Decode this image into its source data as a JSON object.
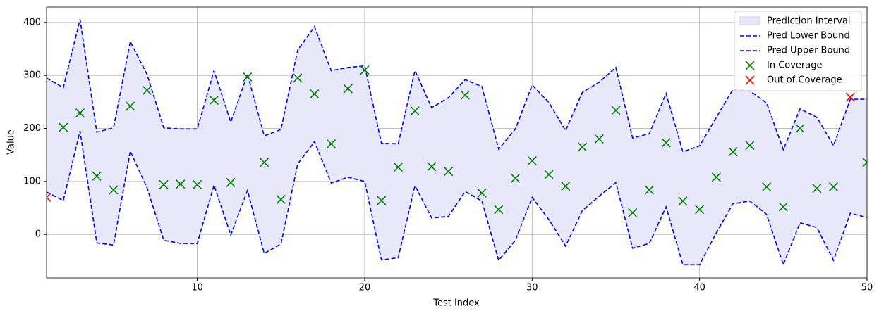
{
  "chart_data": {
    "type": "interval",
    "xlabel": "Test Index",
    "ylabel": "Value",
    "xlim": [
      1,
      50
    ],
    "ylim": [
      -82,
      429
    ],
    "xticks": [
      10,
      20,
      30,
      40,
      50
    ],
    "yticks": [
      0,
      100,
      200,
      300,
      400
    ],
    "grid": true,
    "legend": "upper right",
    "x": [
      1,
      2,
      3,
      4,
      5,
      6,
      7,
      8,
      9,
      10,
      11,
      12,
      13,
      14,
      15,
      16,
      17,
      18,
      19,
      20,
      21,
      22,
      23,
      24,
      25,
      26,
      27,
      28,
      29,
      30,
      31,
      32,
      33,
      34,
      35,
      36,
      37,
      38,
      39,
      40,
      41,
      42,
      43,
      44,
      45,
      46,
      47,
      48,
      49,
      50
    ],
    "interval": {
      "name": "Prediction Interval",
      "color": "#e8e8fb"
    },
    "series": [
      {
        "name": "Pred Lower Bound",
        "color": "#0000ff",
        "style": "dashed",
        "values": [
          80,
          64,
          195,
          -16,
          -20,
          157,
          88,
          -11,
          -17,
          -17,
          93,
          -1,
          83,
          -36,
          -18,
          133,
          175,
          97,
          108,
          100,
          -48,
          -44,
          92,
          31,
          34,
          81,
          63,
          -49,
          -11,
          70,
          28,
          -22,
          45,
          72,
          98,
          -26,
          -17,
          52,
          -57,
          -57,
          3,
          58,
          63,
          38,
          -57,
          22,
          13,
          -49,
          40,
          32
        ]
      },
      {
        "name": "Pred Upper Bound",
        "color": "#0000ff",
        "style": "dashed",
        "values": [
          295,
          277,
          406,
          193,
          201,
          364,
          302,
          201,
          199,
          199,
          309,
          212,
          302,
          186,
          198,
          348,
          392,
          309,
          315,
          318,
          172,
          171,
          309,
          239,
          258,
          292,
          279,
          161,
          199,
          282,
          249,
          196,
          268,
          287,
          315,
          182,
          190,
          266,
          156,
          167,
          221,
          274,
          271,
          248,
          160,
          237,
          221,
          168,
          255,
          255
        ]
      },
      {
        "name": "In Coverage",
        "color": "#008000",
        "marker": "x",
        "x": [
          2,
          3,
          4,
          5,
          6,
          7,
          8,
          9,
          10,
          11,
          12,
          13,
          14,
          15,
          16,
          17,
          18,
          19,
          20,
          21,
          22,
          23,
          24,
          25,
          26,
          27,
          28,
          29,
          30,
          31,
          32,
          33,
          34,
          35,
          36,
          37,
          38,
          39,
          40,
          41,
          42,
          43,
          44,
          45,
          46,
          47,
          48,
          50
        ],
        "values": [
          202,
          229,
          110,
          84,
          242,
          272,
          94,
          95,
          94,
          253,
          98,
          297,
          136,
          66,
          295,
          265,
          171,
          275,
          310,
          64,
          127,
          233,
          128,
          119,
          263,
          78,
          47,
          106,
          139,
          113,
          91,
          165,
          180,
          234,
          41,
          84,
          173,
          63,
          47,
          108,
          156,
          168,
          90,
          52,
          200,
          87,
          90,
          136
        ]
      },
      {
        "name": "Out of Coverage",
        "color": "#ff0000",
        "marker": "x",
        "x": [
          1,
          49
        ],
        "values": [
          70,
          259
        ]
      }
    ]
  }
}
